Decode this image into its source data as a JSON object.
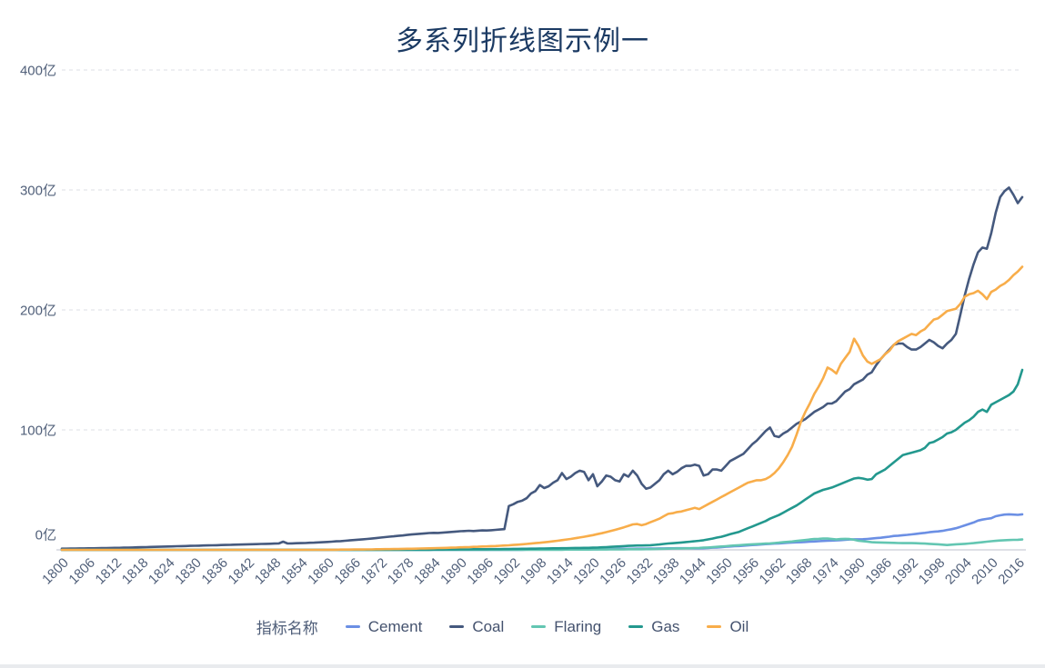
{
  "page": {
    "background": "#ffffff",
    "bottom_bar_color": "#e9ebee"
  },
  "chart_data": {
    "type": "line",
    "title": "多系列折线图示例一",
    "title_color": "#1b3a63",
    "axis_label_color": "#51607a",
    "gridline_color": "#dcdfe4",
    "axis_line_color": "#c9ced6",
    "legend": {
      "title": "指标名称",
      "position": "bottom"
    },
    "x_axis": {
      "start_year": 1800,
      "end_year": 2017,
      "tick_interval": 6,
      "tick_labels": [
        "1800",
        "1806",
        "1812",
        "1818",
        "1824",
        "1830",
        "1836",
        "1842",
        "1848",
        "1854",
        "1860",
        "1866",
        "1872",
        "1878",
        "1884",
        "1890",
        "1896",
        "1902",
        "1908",
        "1914",
        "1920",
        "1926",
        "1932",
        "1938",
        "1944",
        "1950",
        "1956",
        "1962",
        "1968",
        "1974",
        "1980",
        "1986",
        "1992",
        "1998",
        "2004",
        "2010",
        "2016"
      ]
    },
    "y_axis": {
      "min": 0,
      "max": 400,
      "unit": "亿",
      "tick_labels": [
        "400亿",
        "300亿",
        "200亿",
        "100亿",
        "0亿"
      ]
    },
    "grid": {
      "horizontal_gridlines": true,
      "style": "dashed"
    },
    "series": [
      {
        "name": "Cement",
        "color": "#6b8fe4",
        "values": [
          0,
          0,
          0,
          0,
          0,
          0,
          0,
          0,
          0,
          0,
          0,
          0,
          0,
          0,
          0,
          0,
          0,
          0,
          0,
          0,
          0,
          0,
          0,
          0,
          0,
          0,
          0,
          0,
          0,
          0,
          0,
          0,
          0,
          0,
          0,
          0,
          0,
          0,
          0,
          0,
          0,
          0,
          0,
          0,
          0,
          0,
          0,
          0,
          0,
          0,
          0,
          0,
          0,
          0,
          0,
          0,
          0,
          0,
          0,
          0,
          0,
          0,
          0,
          0,
          0,
          0,
          0,
          0,
          0,
          0,
          0,
          0,
          0,
          0,
          0,
          0,
          0,
          0,
          0,
          0,
          0,
          0,
          0,
          0,
          0,
          0,
          0,
          0,
          0,
          0,
          0,
          0,
          0,
          0,
          0,
          0,
          0,
          0,
          0,
          0,
          0.1,
          0.1,
          0.1,
          0.1,
          0.1,
          0.2,
          0.2,
          0.2,
          0.2,
          0.2,
          0.3,
          0.3,
          0.3,
          0.3,
          0.3,
          0.3,
          0.4,
          0.4,
          0.4,
          0.4,
          0.5,
          0.5,
          0.6,
          0.6,
          0.7,
          0.7,
          0.8,
          0.8,
          0.9,
          0.9,
          1,
          1,
          1,
          1.1,
          1.1,
          1.2,
          1.2,
          1.3,
          1.3,
          1.4,
          1.4,
          1.4,
          1.3,
          1.3,
          1.3,
          1.4,
          1.6,
          1.8,
          2,
          2.2,
          2.6,
          2.8,
          3,
          3.2,
          3.5,
          3.7,
          4,
          4.2,
          4.5,
          4.8,
          5,
          5.2,
          5.4,
          5.6,
          5.9,
          6.1,
          6.3,
          6.4,
          6.6,
          6.9,
          7,
          7.2,
          7.4,
          7.6,
          7.7,
          7.9,
          8.1,
          8.3,
          8.6,
          8.8,
          8.8,
          8.9,
          9.1,
          9.4,
          9.8,
          10.1,
          10.5,
          11,
          11.6,
          11.8,
          12.2,
          12.5,
          12.9,
          13.3,
          13.8,
          14.2,
          14.7,
          15.1,
          15.4,
          15.8,
          16.6,
          17.2,
          18,
          19.2,
          20.4,
          21.6,
          22.8,
          24.4,
          25.2,
          25.8,
          26.4,
          28,
          28.8,
          29.4,
          29.6,
          29.4,
          29.2,
          29.6
        ]
      },
      {
        "name": "Coal",
        "color": "#45597e",
        "values": [
          1,
          1,
          1.1,
          1.1,
          1.2,
          1.2,
          1.3,
          1.3,
          1.4,
          1.5,
          1.5,
          1.6,
          1.7,
          1.7,
          1.8,
          1.9,
          2,
          2.1,
          2.2,
          2.3,
          2.4,
          2.5,
          2.6,
          2.7,
          2.8,
          2.9,
          3,
          3.1,
          3.2,
          3.3,
          3.4,
          3.5,
          3.6,
          3.7,
          3.8,
          3.9,
          4,
          4.1,
          4.2,
          4.3,
          4.4,
          4.5,
          4.6,
          4.7,
          4.8,
          4.9,
          5,
          5.1,
          5.2,
          5.3,
          6.8,
          5.3,
          5.4,
          5.5,
          5.6,
          5.7,
          5.9,
          6,
          6.2,
          6.4,
          6.6,
          6.8,
          7.1,
          7.3,
          7.6,
          7.9,
          8.2,
          8.5,
          8.8,
          9.1,
          9.4,
          9.8,
          10.2,
          10.6,
          11,
          11.3,
          11.7,
          12,
          12.4,
          12.8,
          13.1,
          13.4,
          13.7,
          14,
          14.2,
          14.1,
          14.3,
          14.6,
          14.9,
          15.2,
          15.5,
          15.7,
          15.9,
          15.7,
          16,
          16.2,
          16.1,
          16.4,
          16.7,
          17,
          17.3,
          36.5,
          38,
          40,
          41,
          43,
          47,
          49,
          54,
          51.5,
          53,
          56,
          58,
          64,
          59,
          61,
          64,
          66,
          65,
          58,
          63,
          53,
          57,
          62,
          61,
          58,
          57,
          63,
          61,
          66,
          62,
          55,
          51,
          52,
          55,
          58,
          63,
          66,
          63,
          65,
          68,
          70,
          70,
          71,
          70,
          62,
          63,
          67,
          67,
          66,
          70,
          74,
          76,
          78,
          80,
          84,
          88,
          91,
          95,
          99,
          102,
          95,
          94,
          97,
          99,
          102,
          105,
          107,
          109,
          112,
          115,
          117,
          119,
          122,
          122,
          124,
          128,
          132,
          134,
          138,
          140,
          142,
          146,
          148,
          154,
          159,
          163,
          167,
          171,
          172,
          172,
          169,
          167,
          167,
          169,
          172,
          175,
          173,
          170,
          168,
          172,
          175,
          180,
          196,
          212,
          226,
          238,
          248,
          252,
          251,
          264,
          281,
          294,
          299,
          302,
          296,
          289,
          294
        ]
      },
      {
        "name": "Flaring",
        "color": "#63c6b2",
        "values": [
          0,
          0,
          0,
          0,
          0,
          0,
          0,
          0,
          0,
          0,
          0,
          0,
          0,
          0,
          0,
          0,
          0,
          0,
          0,
          0,
          0,
          0,
          0,
          0,
          0,
          0,
          0,
          0,
          0,
          0,
          0,
          0,
          0,
          0,
          0,
          0,
          0,
          0,
          0,
          0,
          0,
          0,
          0,
          0,
          0,
          0,
          0,
          0,
          0,
          0,
          0,
          0,
          0,
          0,
          0,
          0,
          0,
          0,
          0,
          0,
          0,
          0,
          0,
          0,
          0,
          0,
          0,
          0,
          0,
          0,
          0,
          0,
          0,
          0,
          0,
          0,
          0,
          0,
          0,
          0,
          0,
          0,
          0,
          0,
          0,
          0,
          0,
          0,
          0,
          0,
          0,
          0,
          0,
          0,
          0,
          0,
          0,
          0,
          0,
          0,
          0.1,
          0.1,
          0.1,
          0.1,
          0.1,
          0.1,
          0.1,
          0.1,
          0.1,
          0.1,
          0.1,
          0.1,
          0.1,
          0.1,
          0.2,
          0.2,
          0.2,
          0.2,
          0.2,
          0.2,
          0.3,
          0.3,
          0.3,
          0.3,
          0.4,
          0.4,
          0.4,
          0.4,
          0.5,
          0.5,
          0.5,
          0.5,
          0.6,
          0.6,
          0.7,
          0.8,
          0.9,
          1,
          1.1,
          1.2,
          1.2,
          1.3,
          1.4,
          1.5,
          1.6,
          1.8,
          2,
          2.2,
          2.5,
          2.8,
          3,
          3.3,
          3.6,
          3.9,
          4.2,
          4.4,
          4.6,
          4.8,
          5,
          5.2,
          5.4,
          5.7,
          6,
          6.4,
          6.7,
          7,
          7.4,
          7.8,
          8.2,
          8.6,
          9,
          9.2,
          9.5,
          9.4,
          9,
          8.6,
          9,
          9.2,
          9,
          8.4,
          7.6,
          7.2,
          6.8,
          6.4,
          6.2,
          6.1,
          6,
          5.9,
          5.8,
          5.7,
          5.6,
          5.6,
          5.6,
          5.5,
          5.4,
          5.2,
          5,
          4.8,
          4.6,
          4.3,
          4,
          4.3,
          4.6,
          4.8,
          5,
          5.3,
          5.6,
          6,
          6.4,
          6.8,
          7.2,
          7.5,
          7.8,
          8,
          8.2,
          8.3,
          8.4,
          8.6
        ]
      },
      {
        "name": "Gas",
        "color": "#23988e",
        "values": [
          0,
          0,
          0,
          0,
          0,
          0,
          0,
          0,
          0,
          0,
          0,
          0,
          0,
          0,
          0,
          0,
          0,
          0,
          0,
          0,
          0,
          0,
          0,
          0,
          0,
          0,
          0,
          0,
          0,
          0,
          0,
          0,
          0,
          0,
          0,
          0,
          0,
          0,
          0,
          0,
          0,
          0,
          0,
          0,
          0,
          0,
          0,
          0,
          0,
          0,
          0,
          0,
          0,
          0,
          0,
          0,
          0,
          0,
          0,
          0,
          0,
          0,
          0,
          0,
          0,
          0,
          0,
          0,
          0,
          0,
          0,
          0,
          0,
          0,
          0,
          0,
          0,
          0,
          0,
          0,
          0.1,
          0.1,
          0.1,
          0.1,
          0.2,
          0.2,
          0.2,
          0.3,
          0.3,
          0.3,
          0.4,
          0.4,
          0.4,
          0.5,
          0.5,
          0.5,
          0.5,
          0.6,
          0.6,
          0.6,
          0.7,
          0.7,
          0.8,
          0.8,
          0.9,
          0.9,
          1,
          1,
          1.1,
          1.1,
          1.2,
          1.3,
          1.3,
          1.4,
          1.4,
          1.5,
          1.6,
          1.6,
          1.7,
          1.7,
          1.8,
          1.9,
          2.1,
          2.3,
          2.5,
          2.7,
          2.9,
          3.1,
          3.3,
          3.5,
          3.6,
          3.6,
          3.7,
          3.9,
          4.2,
          4.5,
          4.9,
          5.3,
          5.5,
          5.8,
          6.1,
          6.5,
          6.8,
          7.2,
          7.6,
          8,
          8.7,
          9.4,
          10.2,
          10.9,
          12,
          13,
          14,
          15,
          16.5,
          18,
          19.5,
          21,
          22.5,
          24,
          26,
          27.5,
          29,
          31,
          33,
          35,
          37,
          39.5,
          42,
          44.5,
          47,
          48.5,
          50,
          51,
          52,
          53.5,
          55,
          56.5,
          58,
          59.5,
          60,
          59.5,
          58.5,
          59,
          63,
          65,
          67,
          70,
          73,
          76,
          79,
          80,
          81,
          82,
          83,
          85,
          89,
          90,
          92,
          94,
          97,
          98,
          100,
          103,
          106,
          108,
          111,
          115,
          117,
          115,
          121,
          123,
          125,
          127,
          129,
          132,
          138,
          150
        ]
      },
      {
        "name": "Oil",
        "color": "#f8ad4a",
        "values": [
          0,
          0,
          0,
          0,
          0,
          0,
          0,
          0,
          0,
          0,
          0,
          0,
          0,
          0,
          0,
          0,
          0,
          0,
          0,
          0,
          0,
          0,
          0,
          0,
          0,
          0,
          0,
          0,
          0,
          0,
          0,
          0,
          0,
          0,
          0,
          0,
          0,
          0,
          0,
          0,
          0,
          0,
          0,
          0,
          0,
          0,
          0,
          0,
          0,
          0,
          0,
          0,
          0,
          0,
          0,
          0,
          0,
          0,
          0,
          0,
          0.1,
          0.1,
          0.1,
          0.2,
          0.2,
          0.2,
          0.3,
          0.3,
          0.3,
          0.4,
          0.4,
          0.5,
          0.5,
          0.6,
          0.6,
          0.7,
          0.7,
          0.8,
          0.9,
          0.9,
          1,
          1.1,
          1.2,
          1.3,
          1.4,
          1.5,
          1.6,
          1.7,
          1.8,
          1.9,
          2.1,
          2.2,
          2.3,
          2.5,
          2.6,
          2.8,
          2.9,
          3.1,
          3.2,
          3.4,
          3.6,
          3.8,
          4.1,
          4.3,
          4.6,
          4.9,
          5.2,
          5.6,
          5.9,
          6.3,
          6.7,
          7.1,
          7.6,
          8.1,
          8.6,
          9.1,
          9.7,
          10.3,
          10.9,
          11.6,
          12.3,
          13.1,
          13.9,
          14.8,
          15.7,
          16.7,
          17.7,
          18.8,
          20,
          21.2,
          21.5,
          20.5,
          21.5,
          23,
          24.5,
          26,
          28,
          30,
          30.5,
          31.5,
          32,
          33,
          34,
          35,
          34,
          36,
          38,
          40,
          42,
          44,
          46,
          48,
          50,
          52,
          54,
          56,
          57,
          58,
          58,
          59,
          61,
          64,
          68,
          73,
          79,
          86,
          96,
          107,
          115,
          122,
          130,
          136,
          143,
          152,
          150,
          147,
          155,
          160,
          165,
          176,
          170,
          162,
          157,
          155,
          157,
          159,
          163,
          166,
          171,
          174,
          176,
          178,
          180,
          179,
          182,
          184,
          188,
          192,
          193,
          196,
          199,
          200,
          201,
          205,
          211,
          213,
          214,
          216,
          213,
          209,
          215,
          217,
          220,
          222,
          225,
          229,
          232,
          236
        ]
      }
    ]
  }
}
